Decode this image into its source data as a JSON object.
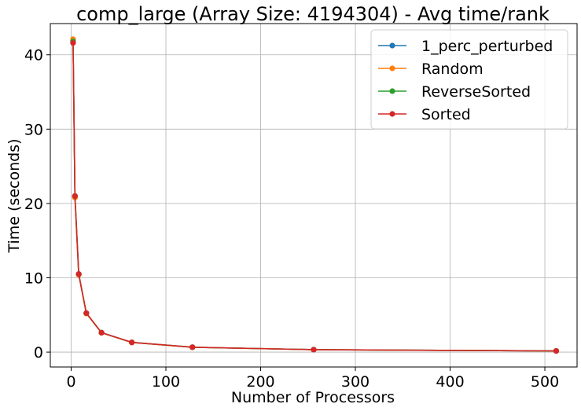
{
  "chart_data": {
    "type": "line",
    "title": "comp_large (Array Size: 4194304) - Avg time/rank",
    "xlabel": "Number of Processors",
    "ylabel": "Time (seconds)",
    "xlim": [
      -22,
      534
    ],
    "ylim": [
      -2,
      44.2
    ],
    "xticks": [
      0,
      100,
      200,
      300,
      400,
      500
    ],
    "yticks": [
      0,
      10,
      20,
      30,
      40
    ],
    "grid": true,
    "legend_position": "top-right",
    "x": [
      2,
      4,
      8,
      16,
      32,
      64,
      128,
      256,
      512
    ],
    "series": [
      {
        "name": "1_perc_perturbed",
        "color": "#1f77b4",
        "values": [
          41.9,
          21.0,
          10.5,
          5.25,
          2.63,
          1.31,
          0.66,
          0.33,
          0.16
        ]
      },
      {
        "name": "Random",
        "color": "#ff7f0e",
        "values": [
          42.1,
          20.8,
          10.4,
          5.2,
          2.6,
          1.3,
          0.65,
          0.33,
          0.16
        ]
      },
      {
        "name": "ReverseSorted",
        "color": "#2ca02c",
        "values": [
          41.8,
          21.0,
          10.5,
          5.25,
          2.62,
          1.31,
          0.66,
          0.33,
          0.16
        ]
      },
      {
        "name": "Sorted",
        "color": "#d62728",
        "values": [
          41.6,
          21.0,
          10.5,
          5.25,
          2.62,
          1.31,
          0.66,
          0.33,
          0.16
        ]
      }
    ]
  }
}
